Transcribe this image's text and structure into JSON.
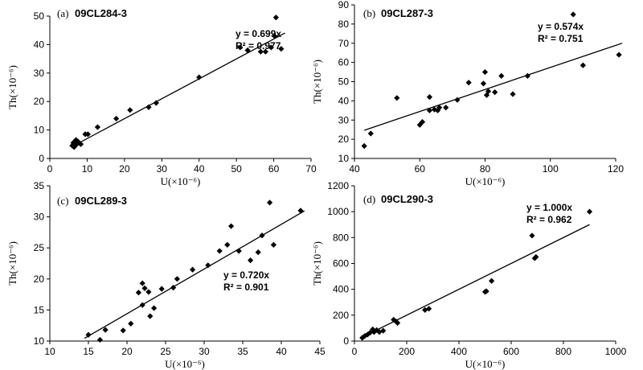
{
  "chart_data": [
    {
      "type": "scatter",
      "panel_label": "(a)",
      "sample": "09CL284-3",
      "xlabel": "U(×10⁻⁶)",
      "ylabel": "Th(×10⁻⁶)",
      "xlim": [
        0,
        70
      ],
      "ylim": [
        0,
        50
      ],
      "xticks": [
        0,
        10,
        20,
        30,
        40,
        50,
        60,
        70
      ],
      "yticks": [
        0,
        10,
        20,
        30,
        40,
        50
      ],
      "equation": "y = 0.699x",
      "r2": "R² = 0.977",
      "slope": 0.699,
      "fit_range": [
        6,
        63
      ],
      "x": [
        6.0,
        6.3,
        6.5,
        7.0,
        7.2,
        7.5,
        7.8,
        8.3,
        9.5,
        10.2,
        12.8,
        17.8,
        21.5,
        26.5,
        28.5,
        40.0,
        51.0,
        53.0,
        56.5,
        57.8,
        59.3,
        60.2,
        60.6,
        62.0
      ],
      "y": [
        4.5,
        5.5,
        4.0,
        6.5,
        5.0,
        6.0,
        5.5,
        5.0,
        8.5,
        8.5,
        11.0,
        14.0,
        17.0,
        18.0,
        19.5,
        28.5,
        39.0,
        38.0,
        37.5,
        37.5,
        39.0,
        43.0,
        49.5,
        38.5
      ]
    },
    {
      "type": "scatter",
      "panel_label": "(b)",
      "sample": "09CL287-3",
      "xlabel": "U(×10⁻⁶)",
      "ylabel": "Th(×10⁻⁶)",
      "xlim": [
        40,
        120
      ],
      "ylim": [
        10,
        90
      ],
      "xticks": [
        40,
        60,
        80,
        100,
        120
      ],
      "yticks": [
        10,
        20,
        30,
        40,
        50,
        60,
        70,
        80,
        90
      ],
      "equation": "y = 0.574x",
      "r2": "R² = 0.751",
      "slope": 0.574,
      "fit_range": [
        43,
        122
      ],
      "x": [
        43.0,
        45.0,
        53.0,
        60.0,
        60.8,
        63.0,
        63.0,
        64.5,
        65.5,
        66.0,
        68.0,
        71.5,
        75.0,
        79.5,
        80.0,
        80.5,
        81.0,
        83.0,
        85.0,
        88.5,
        93.0,
        107.0,
        110.0,
        121.0
      ],
      "y": [
        16.5,
        23.0,
        41.5,
        27.5,
        29.0,
        35.0,
        42.0,
        35.5,
        35.0,
        36.5,
        36.5,
        40.5,
        49.5,
        49.0,
        55.0,
        43.0,
        45.0,
        44.5,
        53.0,
        43.5,
        53.0,
        85.0,
        58.5,
        64.0
      ]
    },
    {
      "type": "scatter",
      "panel_label": "(c)",
      "sample": "09CL289-3",
      "xlabel": "U(×10⁻⁶)",
      "ylabel": "Th(×10⁻⁶)",
      "xlim": [
        10,
        45
      ],
      "ylim": [
        10,
        35
      ],
      "xticks": [
        10,
        15,
        20,
        25,
        30,
        35,
        40,
        45
      ],
      "yticks": [
        10,
        15,
        20,
        25,
        30,
        35
      ],
      "equation": "y = 0.720x",
      "r2": "R² = 0.901",
      "slope": 0.72,
      "fit_range": [
        14.5,
        43
      ],
      "x": [
        15.0,
        16.5,
        17.2,
        19.5,
        20.5,
        21.5,
        22.0,
        22.0,
        22.3,
        22.8,
        23.0,
        23.5,
        24.5,
        26.0,
        26.5,
        28.5,
        30.5,
        32.0,
        33.0,
        33.5,
        34.5,
        36.0,
        37.0,
        37.5,
        38.5,
        39.0,
        42.5
      ],
      "y": [
        11.0,
        10.2,
        11.8,
        11.7,
        12.8,
        17.8,
        15.8,
        19.3,
        18.5,
        17.9,
        14.0,
        15.3,
        18.4,
        18.6,
        20.0,
        21.5,
        22.2,
        24.5,
        25.5,
        28.5,
        24.5,
        23.0,
        24.3,
        27.0,
        32.3,
        25.5,
        31.0
      ]
    },
    {
      "type": "scatter",
      "panel_label": "(d)",
      "sample": "09CL290-3",
      "xlabel": "U(×10⁻⁶)",
      "ylabel": "Th(×10⁻⁶)",
      "xlim": [
        0,
        1000
      ],
      "ylim": [
        0,
        1200
      ],
      "xticks": [
        0,
        200,
        400,
        600,
        800,
        1000
      ],
      "yticks": [
        0,
        200,
        400,
        600,
        800,
        1000,
        1200
      ],
      "equation": "y = 1.000x",
      "r2": "R² = 0.962",
      "slope": 1.0,
      "fit_range": [
        25,
        900
      ],
      "x": [
        30,
        40,
        50,
        60,
        70,
        75,
        85,
        95,
        110,
        150,
        160,
        165,
        270,
        285,
        500,
        505,
        525,
        680,
        690,
        695,
        900
      ],
      "y": [
        25,
        40,
        50,
        65,
        90,
        70,
        85,
        70,
        80,
        165,
        150,
        140,
        240,
        250,
        380,
        385,
        465,
        815,
        640,
        650,
        1000
      ]
    }
  ]
}
